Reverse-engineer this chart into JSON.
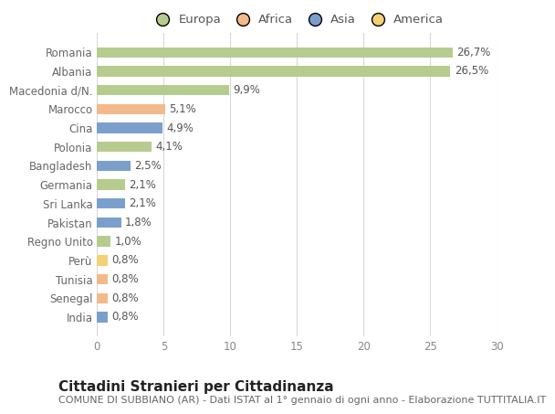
{
  "title": "Cittadini Stranieri per Cittadinanza",
  "subtitle": "COMUNE DI SUBBIANO (AR) - Dati ISTAT al 1° gennaio di ogni anno - Elaborazione TUTTITALIA.IT",
  "categories": [
    "Romania",
    "Albania",
    "Macedonia d/N.",
    "Marocco",
    "Cina",
    "Polonia",
    "Bangladesh",
    "Germania",
    "Sri Lanka",
    "Pakistan",
    "Regno Unito",
    "Perù",
    "Tunisia",
    "Senegal",
    "India"
  ],
  "values": [
    26.7,
    26.5,
    9.9,
    5.1,
    4.9,
    4.1,
    2.5,
    2.1,
    2.1,
    1.8,
    1.0,
    0.8,
    0.8,
    0.8,
    0.8
  ],
  "labels": [
    "26,7%",
    "26,5%",
    "9,9%",
    "5,1%",
    "4,9%",
    "4,1%",
    "2,5%",
    "2,1%",
    "2,1%",
    "1,8%",
    "1,0%",
    "0,8%",
    "0,8%",
    "0,8%",
    "0,8%"
  ],
  "colors": [
    "#b5cc8e",
    "#b5cc8e",
    "#b5cc8e",
    "#f4b98a",
    "#7b9fcc",
    "#b5cc8e",
    "#7b9fcc",
    "#b5cc8e",
    "#7b9fcc",
    "#7b9fcc",
    "#b5cc8e",
    "#f4d174",
    "#f4b98a",
    "#f4b98a",
    "#7b9fcc"
  ],
  "legend_labels": [
    "Europa",
    "Africa",
    "Asia",
    "America"
  ],
  "legend_colors": [
    "#b5cc8e",
    "#f4b98a",
    "#7b9fcc",
    "#f4d174"
  ],
  "xlim": [
    0,
    30
  ],
  "xticks": [
    0,
    5,
    10,
    15,
    20,
    25,
    30
  ],
  "background_color": "#ffffff",
  "plot_bg_color": "#ffffff",
  "grid_color": "#d8d8d8",
  "bar_height": 0.55,
  "title_fontsize": 11,
  "subtitle_fontsize": 8,
  "label_fontsize": 8.5,
  "tick_fontsize": 8.5,
  "legend_fontsize": 9.5
}
